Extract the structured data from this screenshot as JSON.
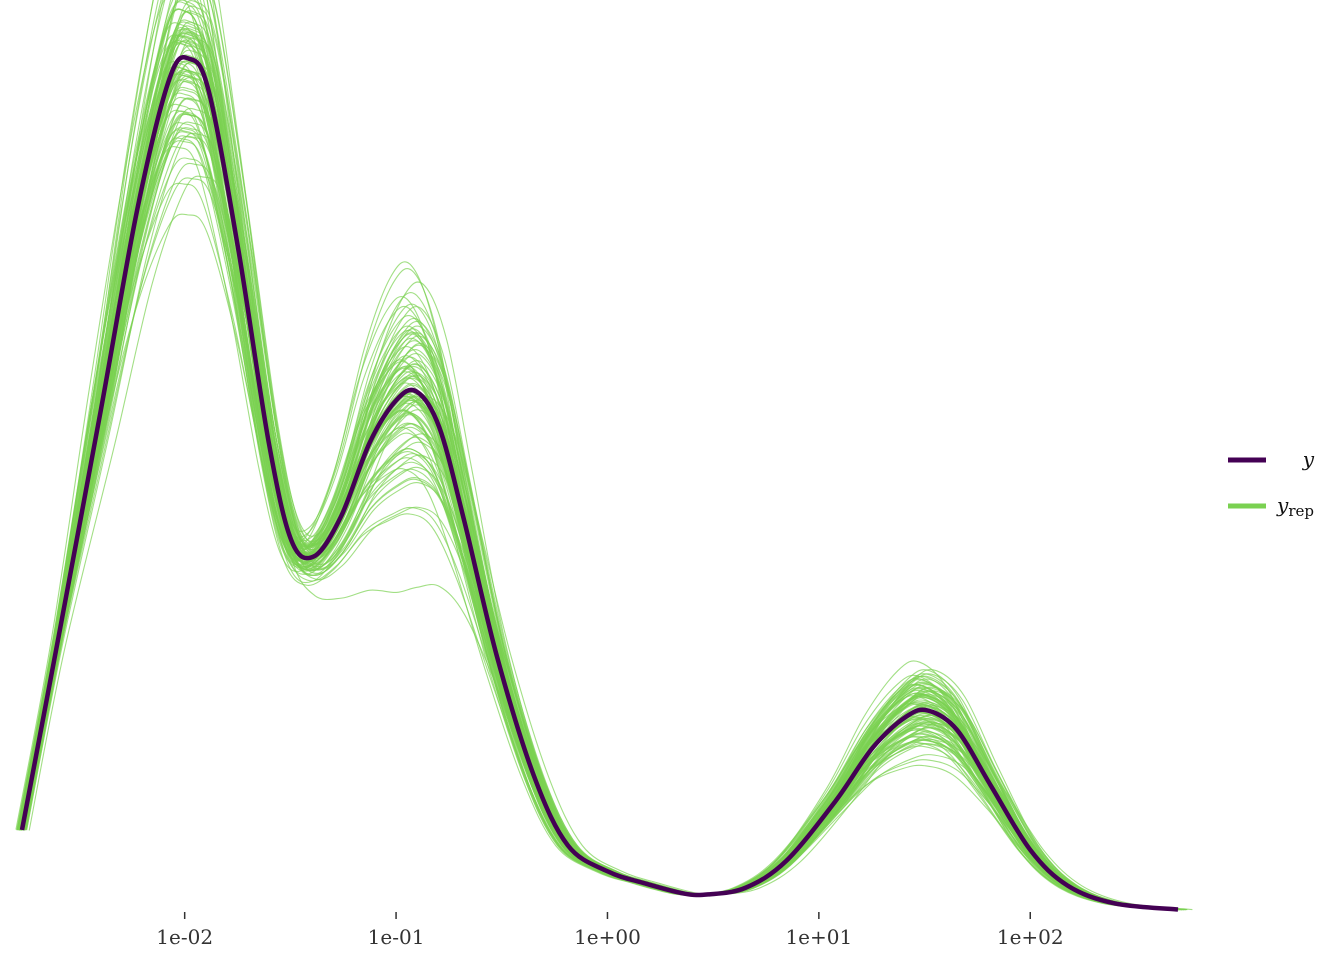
{
  "chart_data": {
    "type": "line",
    "title": "",
    "xlabel": "",
    "ylabel": "",
    "x_scale": "log10",
    "xlim": [
      0.0017,
      500
    ],
    "ylim": [
      0,
      0.2
    ],
    "grid": false,
    "legend_position": "right",
    "x_ticks": [
      {
        "value": 0.01,
        "label": "1e-02"
      },
      {
        "value": 0.1,
        "label": "1e-01"
      },
      {
        "value": 1,
        "label": "1e+00"
      },
      {
        "value": 10,
        "label": "1e+01"
      },
      {
        "value": 100,
        "label": "1e+02"
      }
    ],
    "legend": [
      {
        "key": "y",
        "label": "y",
        "subscript": "",
        "color": "#440154"
      },
      {
        "key": "yrep",
        "label": "y",
        "subscript": "rep",
        "color": "#7AD151"
      }
    ],
    "series": [
      {
        "key": "y",
        "color": "#440154",
        "points": [
          [
            0.0017,
            0.018
          ],
          [
            0.0025,
            0.06
          ],
          [
            0.004,
            0.112
          ],
          [
            0.006,
            0.158
          ],
          [
            0.0085,
            0.187
          ],
          [
            0.0105,
            0.1913
          ],
          [
            0.013,
            0.184
          ],
          [
            0.018,
            0.148
          ],
          [
            0.025,
            0.105
          ],
          [
            0.032,
            0.083
          ],
          [
            0.041,
            0.0795
          ],
          [
            0.055,
            0.0885
          ],
          [
            0.075,
            0.105
          ],
          [
            0.1,
            0.1145
          ],
          [
            0.125,
            0.1165
          ],
          [
            0.16,
            0.1085
          ],
          [
            0.21,
            0.0875
          ],
          [
            0.3,
            0.057
          ],
          [
            0.45,
            0.03
          ],
          [
            0.65,
            0.0145
          ],
          [
            1.0,
            0.0087
          ],
          [
            1.5,
            0.006
          ],
          [
            2.3,
            0.0037
          ],
          [
            3.0,
            0.0035
          ],
          [
            4.5,
            0.005
          ],
          [
            7,
            0.011
          ],
          [
            12,
            0.0245
          ],
          [
            18,
            0.0365
          ],
          [
            26,
            0.0435
          ],
          [
            33,
            0.0448
          ],
          [
            45,
            0.0405
          ],
          [
            65,
            0.028
          ],
          [
            100,
            0.0135
          ],
          [
            150,
            0.0055
          ],
          [
            250,
            0.0015
          ],
          [
            500,
            0.0001
          ]
        ]
      }
    ],
    "replicates": {
      "key": "yrep",
      "color": "#7AD151",
      "count": 100
    }
  }
}
